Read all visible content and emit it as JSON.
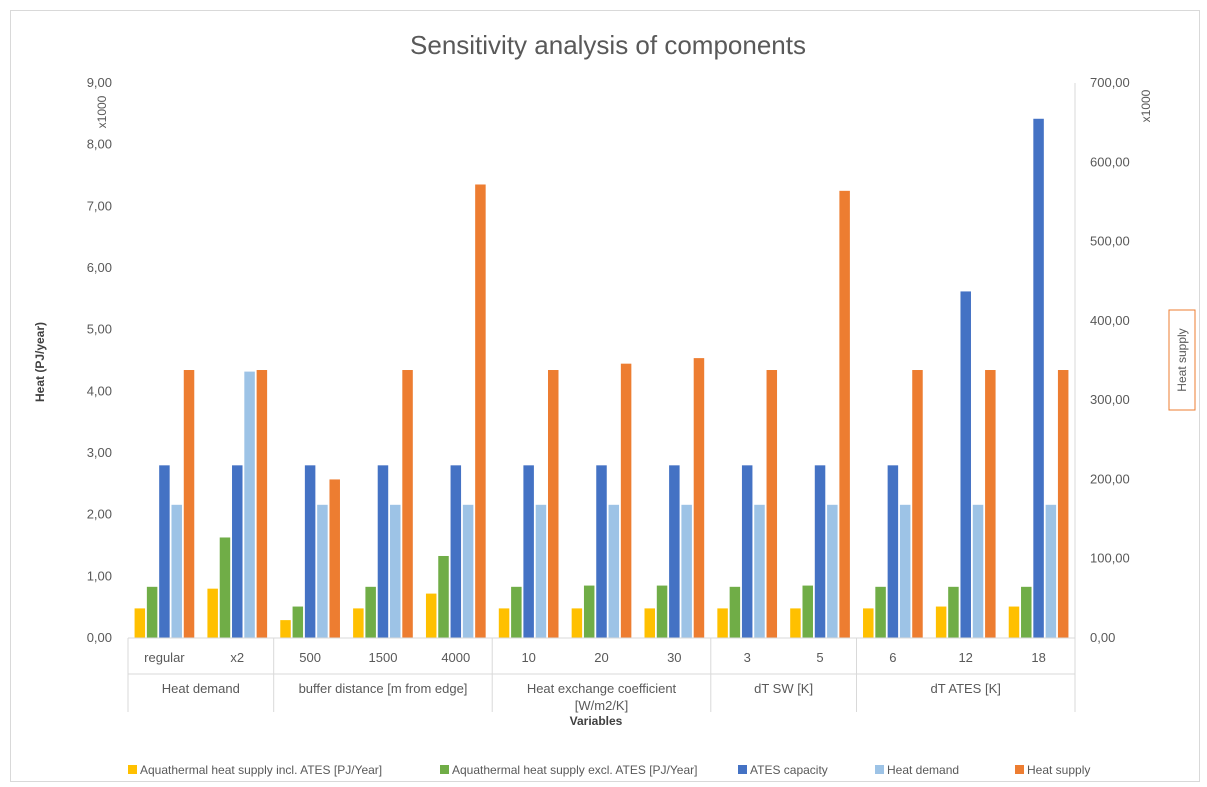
{
  "chart_data": {
    "type": "bar",
    "title": "Sensitivity analysis of components",
    "xlabel": "Variables",
    "ylabel": "Heat (PJ/year)",
    "ylabel_right": "Heat supply",
    "left_unit": "x1000",
    "right_unit": "x1000",
    "ylim": [
      0,
      9
    ],
    "ylim_right": [
      0,
      700
    ],
    "yticks": [
      "0,00",
      "1,00",
      "2,00",
      "3,00",
      "4,00",
      "5,00",
      "6,00",
      "7,00",
      "8,00",
      "9,00"
    ],
    "yticks_right": [
      "0,00",
      "100,00",
      "200,00",
      "300,00",
      "400,00",
      "500,00",
      "600,00",
      "700,00"
    ],
    "grid": false,
    "legend_position": "bottom",
    "categories": [
      "regular",
      "x2",
      "500",
      "1500",
      "4000",
      "10",
      "20",
      "30",
      "3",
      "5",
      "6",
      "12",
      "18"
    ],
    "groups": [
      {
        "label": "Heat demand",
        "span": 2
      },
      {
        "label": "buffer distance [m from edge]",
        "span": 3
      },
      {
        "label": "Heat exchange coefficient",
        "label2": "[W/m2/K]",
        "span": 3
      },
      {
        "label": "dT SW [K]",
        "span": 2
      },
      {
        "label": "dT ATES [K]",
        "span": 3
      }
    ],
    "series": [
      {
        "name": "Aquathermal heat supply incl. ATES [PJ/Year]",
        "axis": "left",
        "color": "#FFC000",
        "values": [
          0.48,
          0.8,
          0.29,
          0.48,
          0.72,
          0.48,
          0.48,
          0.48,
          0.48,
          0.48,
          0.48,
          0.51,
          0.51
        ]
      },
      {
        "name": "Aquathermal heat supply excl. ATES [PJ/Year]",
        "axis": "left",
        "color": "#70AD47",
        "values": [
          0.83,
          1.63,
          0.51,
          0.83,
          1.33,
          0.83,
          0.85,
          0.85,
          0.83,
          0.85,
          0.83,
          0.83,
          0.83
        ]
      },
      {
        "name": "ATES capacity",
        "axis": "left",
        "color": "#4472C4",
        "values": [
          2.8,
          2.8,
          2.8,
          2.8,
          2.8,
          2.8,
          2.8,
          2.8,
          2.8,
          2.8,
          2.8,
          5.62,
          8.42
        ]
      },
      {
        "name": "Heat demand",
        "axis": "left",
        "color": "#9DC3E6",
        "values": [
          2.16,
          4.32,
          2.16,
          2.16,
          2.16,
          2.16,
          2.16,
          2.16,
          2.16,
          2.16,
          2.16,
          2.16,
          2.16
        ]
      },
      {
        "name": "Heat supply",
        "axis": "right",
        "color": "#ED7D31",
        "values": [
          338,
          338,
          200,
          338,
          572,
          338,
          346,
          353,
          338,
          564,
          338,
          338,
          338
        ]
      }
    ]
  }
}
